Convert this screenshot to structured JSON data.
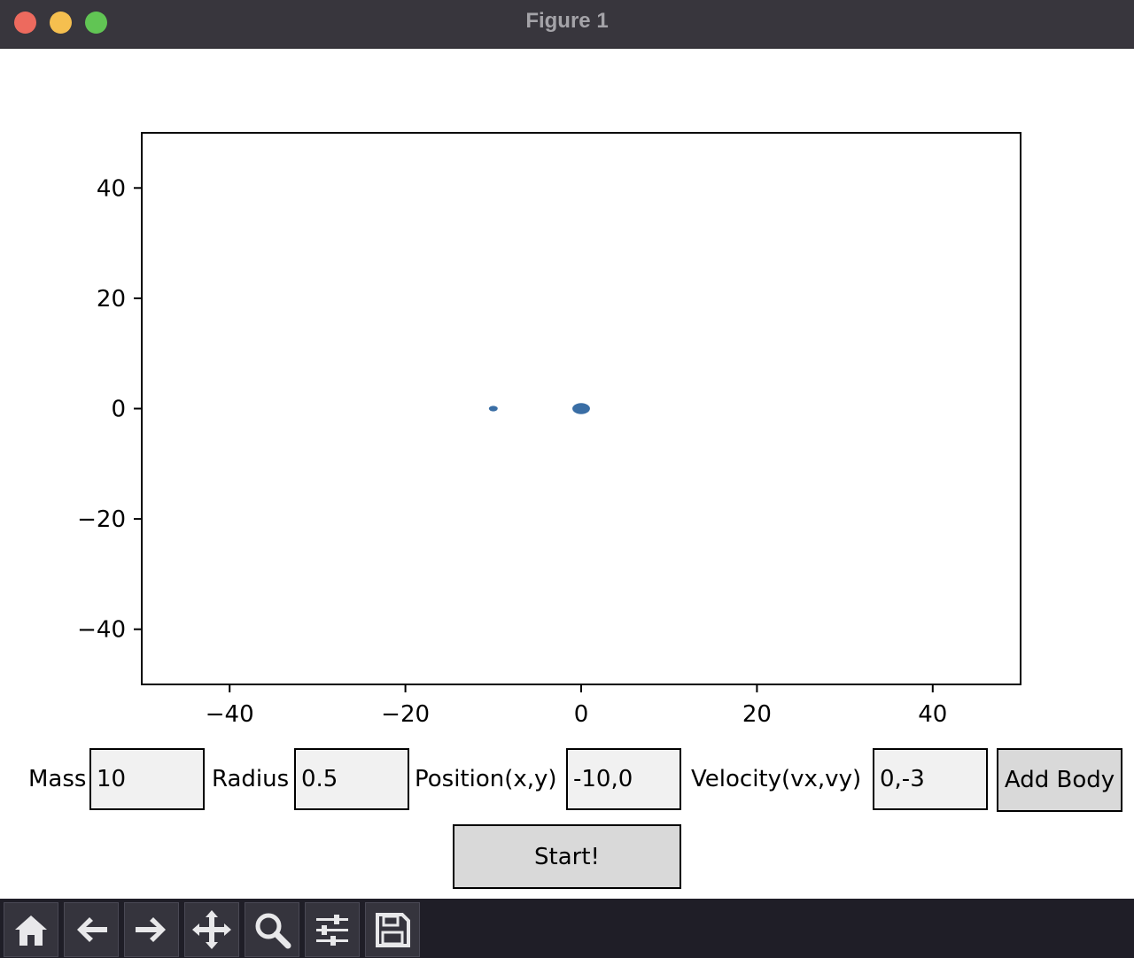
{
  "window": {
    "title": "Figure 1"
  },
  "chart_data": {
    "type": "scatter",
    "xlim": [
      -50,
      50
    ],
    "ylim": [
      -50,
      50
    ],
    "xticks": [
      -40,
      -20,
      0,
      20,
      40
    ],
    "yticks": [
      40,
      20,
      0,
      -20,
      -40
    ],
    "xtick_labels": [
      "−40",
      "−20",
      "0",
      "20",
      "40"
    ],
    "ytick_labels": [
      "40",
      "20",
      "0",
      "−20",
      "−40"
    ],
    "points": [
      {
        "x": -10,
        "y": 0,
        "radius": 0.5
      },
      {
        "x": 0,
        "y": 0,
        "radius": 1.0
      }
    ],
    "point_color": "#3a6ea5",
    "grid": false,
    "title": "",
    "xlabel": "",
    "ylabel": ""
  },
  "controls": {
    "mass_label": "Mass",
    "mass_value": "10",
    "radius_label": "Radius",
    "radius_value": "0.5",
    "position_label": "Position(x,y)",
    "position_value": "-10,0",
    "velocity_label": "Velocity(vx,vy)",
    "velocity_value": "0,-3",
    "add_body_label": "Add Body",
    "start_label": "Start!"
  },
  "toolbar": {
    "buttons": [
      "home-icon",
      "back-arrow-icon",
      "forward-arrow-icon",
      "pan-move-icon",
      "zoom-magnifier-icon",
      "configure-subplots-icon",
      "save-floppy-icon"
    ]
  }
}
